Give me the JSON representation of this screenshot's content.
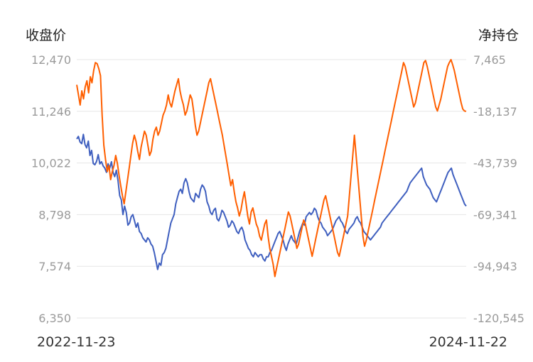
{
  "chart_data": {
    "type": "line",
    "y_left_label": "收盘价",
    "y_right_label": "净持仓",
    "y_left_ticks": [
      "12,470",
      "11,246",
      "10,022",
      "8,798",
      "7,574",
      "6,350"
    ],
    "y_right_ticks": [
      "7,465",
      "-18,137",
      "-43,739",
      "-69,341",
      "-94,943",
      "-120,545"
    ],
    "ylim_left": [
      6350,
      12470
    ],
    "ylim_right": [
      -120545,
      7465
    ],
    "x_start_label": "2022-11-23",
    "x_end_label": "2024-11-22",
    "x_range": [
      "2022-11-23",
      "2024-11-22"
    ],
    "grid": true,
    "series": [
      {
        "axis": "left",
        "color": "#3f5fbf",
        "values": [
          10590,
          10650,
          10520,
          10480,
          10700,
          10460,
          10380,
          10540,
          10200,
          10320,
          10010,
          9980,
          10060,
          10220,
          10000,
          10050,
          9950,
          9900,
          9800,
          10000,
          9900,
          10050,
          9800,
          9700,
          9850,
          9600,
          9250,
          9150,
          8800,
          9000,
          8850,
          8550,
          8600,
          8750,
          8800,
          8650,
          8500,
          8600,
          8400,
          8350,
          8250,
          8200,
          8150,
          8250,
          8200,
          8100,
          8050,
          7900,
          7700,
          7500,
          7650,
          7600,
          7850,
          7900,
          8000,
          8200,
          8400,
          8600,
          8700,
          8800,
          9050,
          9200,
          9350,
          9400,
          9300,
          9550,
          9650,
          9550,
          9350,
          9200,
          9150,
          9100,
          9300,
          9250,
          9200,
          9400,
          9500,
          9450,
          9350,
          9100,
          9000,
          8850,
          8800,
          8900,
          8950,
          8700,
          8650,
          8750,
          8900,
          8850,
          8750,
          8650,
          8500,
          8550,
          8650,
          8600,
          8500,
          8400,
          8350,
          8450,
          8500,
          8400,
          8200,
          8100,
          8000,
          7950,
          7850,
          7800,
          7900,
          7850,
          7800,
          7850,
          7850,
          7750,
          7700,
          7800,
          7800,
          7900,
          7950,
          8050,
          8150,
          8250,
          8350,
          8400,
          8300,
          8200,
          8050,
          7950,
          8100,
          8200,
          8300,
          8200,
          8150,
          8100,
          8250,
          8400,
          8500,
          8600,
          8550,
          8750,
          8800,
          8850,
          8800,
          8850,
          8950,
          8900,
          8750,
          8650,
          8600,
          8500,
          8450,
          8400,
          8300,
          8350,
          8400,
          8450,
          8550,
          8650,
          8700,
          8750,
          8650,
          8600,
          8500,
          8400,
          8350,
          8450,
          8500,
          8550,
          8600,
          8700,
          8750,
          8650,
          8600,
          8500,
          8400,
          8350,
          8300,
          8250,
          8200,
          8250,
          8300,
          8350,
          8400,
          8450,
          8500,
          8600,
          8650,
          8700,
          8750,
          8800,
          8850,
          8900,
          8950,
          9000,
          9050,
          9100,
          9150,
          9200,
          9250,
          9300,
          9350,
          9450,
          9550,
          9600,
          9650,
          9700,
          9750,
          9800,
          9850,
          9900,
          9700,
          9600,
          9500,
          9450,
          9400,
          9300,
          9200,
          9150,
          9100,
          9200,
          9300,
          9400,
          9500,
          9600,
          9700,
          9800,
          9850,
          9900,
          9750,
          9650,
          9550,
          9450,
          9350,
          9250,
          9150,
          9050,
          9000
        ]
      },
      {
        "axis": "right",
        "color": "#ff5f00",
        "values": [
          -5000,
          -10000,
          -15000,
          -8000,
          -12000,
          -6000,
          -3000,
          -9000,
          -1000,
          -4000,
          2000,
          6000,
          5500,
          3000,
          -500,
          -20000,
          -35000,
          -42000,
          -48000,
          -45000,
          -52000,
          -48000,
          -45000,
          -40000,
          -44000,
          -50000,
          -55000,
          -60000,
          -64000,
          -58000,
          -52000,
          -46000,
          -40000,
          -34000,
          -30000,
          -33000,
          -38000,
          -42000,
          -36000,
          -32000,
          -28000,
          -30000,
          -35000,
          -40000,
          -38000,
          -32000,
          -28000,
          -26000,
          -30000,
          -28000,
          -24000,
          -20000,
          -18000,
          -15000,
          -10000,
          -14000,
          -16000,
          -12000,
          -8000,
          -5000,
          -2000,
          -8000,
          -12000,
          -15000,
          -20000,
          -18000,
          -14000,
          -10000,
          -12000,
          -18000,
          -25000,
          -30000,
          -28000,
          -24000,
          -20000,
          -16000,
          -12000,
          -8000,
          -4000,
          -2000,
          -6000,
          -10000,
          -14000,
          -18000,
          -22000,
          -26000,
          -30000,
          -35000,
          -40000,
          -45000,
          -50000,
          -55000,
          -52000,
          -58000,
          -63000,
          -66000,
          -70000,
          -67000,
          -62000,
          -58000,
          -64000,
          -70000,
          -74000,
          -68000,
          -66000,
          -70000,
          -74000,
          -76000,
          -80000,
          -82000,
          -78000,
          -74000,
          -72000,
          -80000,
          -86000,
          -90000,
          -94000,
          -100000,
          -96000,
          -92000,
          -88000,
          -84000,
          -80000,
          -76000,
          -72000,
          -68000,
          -70000,
          -74000,
          -78000,
          -82000,
          -86000,
          -84000,
          -80000,
          -76000,
          -72000,
          -74000,
          -78000,
          -82000,
          -86000,
          -90000,
          -86000,
          -82000,
          -78000,
          -74000,
          -70000,
          -66000,
          -62000,
          -60000,
          -64000,
          -68000,
          -72000,
          -76000,
          -80000,
          -84000,
          -88000,
          -90000,
          -86000,
          -82000,
          -78000,
          -74000,
          -70000,
          -60000,
          -50000,
          -40000,
          -30000,
          -40000,
          -50000,
          -60000,
          -70000,
          -80000,
          -85000,
          -82000,
          -78000,
          -74000,
          -70000,
          -66000,
          -62000,
          -58000,
          -54000,
          -50000,
          -46000,
          -42000,
          -38000,
          -34000,
          -30000,
          -26000,
          -22000,
          -18000,
          -14000,
          -10000,
          -6000,
          -2000,
          2000,
          6000,
          4000,
          0,
          -4000,
          -8000,
          -12000,
          -16000,
          -14000,
          -10000,
          -6000,
          -2000,
          2000,
          6000,
          7000,
          4000,
          0,
          -4000,
          -8000,
          -12000,
          -16000,
          -18000,
          -15000,
          -12000,
          -8000,
          -4000,
          0,
          4000,
          6000,
          7465,
          5000,
          2000,
          -2000,
          -6000,
          -10000,
          -14000,
          -17000,
          -18000,
          -18137
        ]
      }
    ]
  }
}
